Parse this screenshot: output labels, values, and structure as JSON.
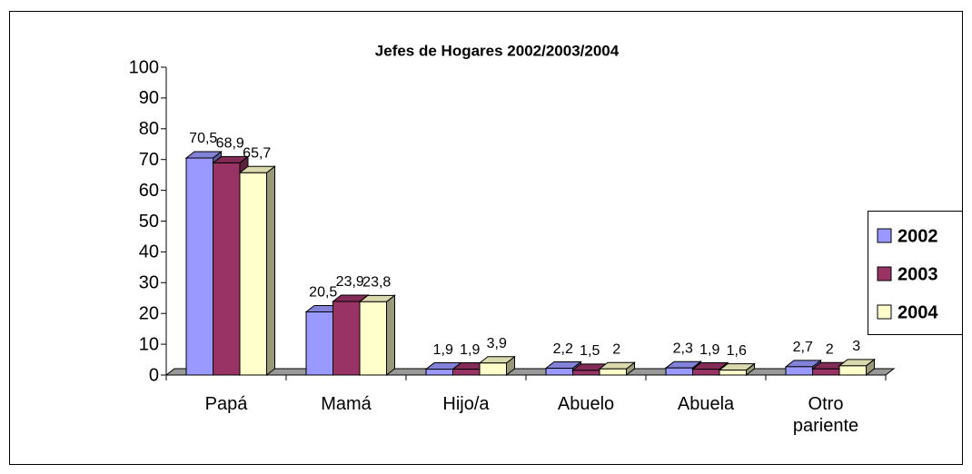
{
  "chart_data": {
    "type": "bar3d",
    "title": "Jefes de Hogares 2002/2003/2004",
    "categories": [
      "Papá",
      "Mamá",
      "Hijo/a",
      "Abuelo",
      "Abuela",
      "Otro pariente"
    ],
    "series": [
      {
        "name": "2002",
        "color": "#9999ff",
        "values": [
          70.5,
          20.5,
          1.9,
          2.2,
          2.3,
          2.7
        ],
        "value_labels": [
          "70,5",
          "20,5",
          "1,9",
          "2,2",
          "2,3",
          "2,7"
        ]
      },
      {
        "name": "2003",
        "color": "#993366",
        "values": [
          68.9,
          23.9,
          1.9,
          1.5,
          1.9,
          2
        ],
        "value_labels": [
          "68,9",
          "23,9",
          "1,9",
          "1,5",
          "1,9",
          "2"
        ]
      },
      {
        "name": "2004",
        "color": "#ffffcc",
        "values": [
          65.7,
          23.8,
          3.9,
          2,
          1.6,
          3
        ],
        "value_labels": [
          "65,7",
          "23,8",
          "3,9",
          "2",
          "1,6",
          "3"
        ]
      }
    ],
    "ylim": [
      0,
      100
    ],
    "yticks": [
      0,
      10,
      20,
      30,
      40,
      50,
      60,
      70,
      80,
      90,
      100
    ],
    "grid": false,
    "legend": "right"
  }
}
